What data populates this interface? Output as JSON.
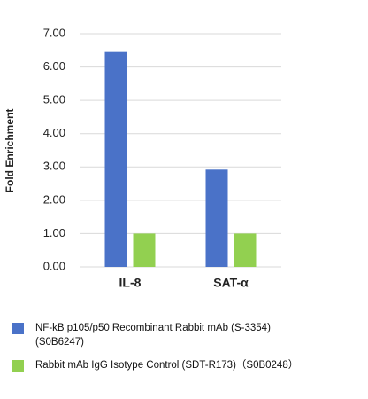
{
  "chart_data": {
    "type": "bar",
    "y_label": "Fold Enrichment",
    "categories": [
      "IL-8",
      "SAT-α"
    ],
    "series": [
      {
        "name": "NF-kB p105/p50 Recombinant Rabbit mAb (S-3354) (S0B6247)",
        "color": "#4a72c8",
        "values": [
          6.45,
          2.92
        ]
      },
      {
        "name": "Rabbit mAb IgG Isotype Control (SDT-R173)（S0B0248）",
        "color": "#92d050",
        "values": [
          1.0,
          1.0
        ]
      }
    ],
    "ylim": [
      0,
      7
    ],
    "yticks": [
      {
        "value": 0,
        "label": "0.00"
      },
      {
        "value": 1,
        "label": "1.00"
      },
      {
        "value": 2,
        "label": "2.00"
      },
      {
        "value": 3,
        "label": "3.00"
      },
      {
        "value": 4,
        "label": "4.00"
      },
      {
        "value": 5,
        "label": "5.00"
      },
      {
        "value": 6,
        "label": "6.00"
      },
      {
        "value": 7,
        "label": "7.00"
      }
    ],
    "grid": true
  }
}
